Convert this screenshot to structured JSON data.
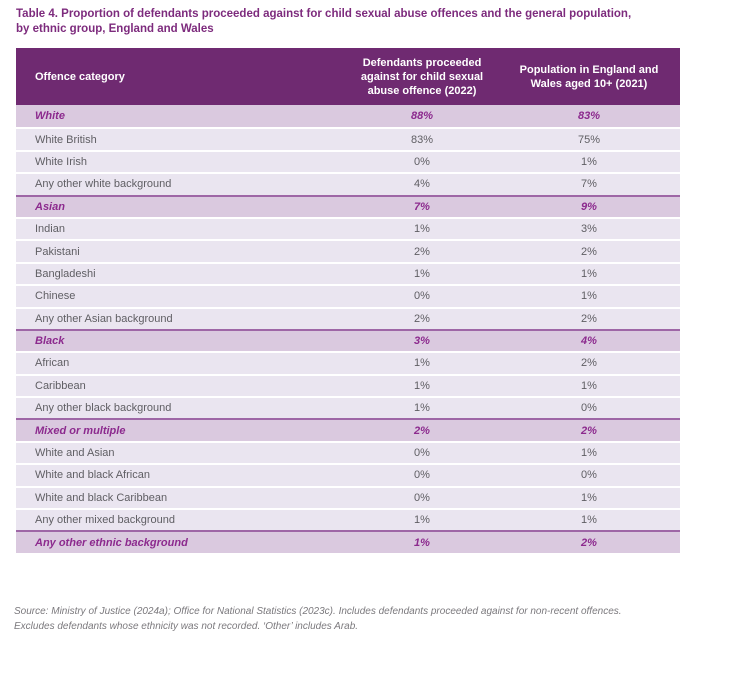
{
  "title": {
    "line1": "Table 4. Proportion of defendants proceeded against for child sexual abuse offences and the general population,",
    "line2": "by ethnic group, England and Wales"
  },
  "table": {
    "headers": [
      "Offence category",
      "Defendants proceeded against for child sexual abuse offence (2022)",
      "Population in England and Wales aged 10+ (2021)"
    ],
    "rows": [
      {
        "label": "White",
        "defendants": "88%",
        "population": "83%",
        "group": true
      },
      {
        "label": "White British",
        "defendants": "83%",
        "population": "75%",
        "group": false
      },
      {
        "label": "White Irish",
        "defendants": "0%",
        "population": "1%",
        "group": false
      },
      {
        "label": "Any other white background",
        "defendants": "4%",
        "population": "7%",
        "group": false
      },
      {
        "label": "Asian",
        "defendants": "7%",
        "population": "9%",
        "group": true
      },
      {
        "label": "Indian",
        "defendants": "1%",
        "population": "3%",
        "group": false
      },
      {
        "label": "Pakistani",
        "defendants": "2%",
        "population": "2%",
        "group": false
      },
      {
        "label": "Bangladeshi",
        "defendants": "1%",
        "population": "1%",
        "group": false
      },
      {
        "label": "Chinese",
        "defendants": "0%",
        "population": "1%",
        "group": false
      },
      {
        "label": "Any other Asian background",
        "defendants": "2%",
        "population": "2%",
        "group": false
      },
      {
        "label": "Black",
        "defendants": "3%",
        "population": "4%",
        "group": true
      },
      {
        "label": "African",
        "defendants": "1%",
        "population": "2%",
        "group": false
      },
      {
        "label": "Caribbean",
        "defendants": "1%",
        "population": "1%",
        "group": false
      },
      {
        "label": "Any other black background",
        "defendants": "1%",
        "population": "0%",
        "group": false
      },
      {
        "label": "Mixed or multiple",
        "defendants": "2%",
        "population": "2%",
        "group": true
      },
      {
        "label": "White and Asian",
        "defendants": "0%",
        "population": "1%",
        "group": false
      },
      {
        "label": "White and black African",
        "defendants": "0%",
        "population": "0%",
        "group": false
      },
      {
        "label": "White and black Caribbean",
        "defendants": "0%",
        "population": "1%",
        "group": false
      },
      {
        "label": "Any other mixed background",
        "defendants": "1%",
        "population": "1%",
        "group": false
      },
      {
        "label": "Any other ethnic background",
        "defendants": "1%",
        "population": "2%",
        "group": true
      }
    ]
  },
  "source": {
    "line1": "Source: Ministry of Justice (2024a); Office for National Statistics (2023c). Includes defendants proceeded against for non-recent offences.",
    "line2": "Excludes defendants whose ethnicity was not recorded. ‘Other’ includes Arab."
  },
  "colors": {
    "title_text": "#7d2b7d",
    "header_bg": "#6f2a71",
    "header_text": "#ffffff",
    "group_row_bg": "#dac9df",
    "group_row_text": "#8c2a8e",
    "body_row_bg": "#eae5f0",
    "body_row_text": "#5f5e63",
    "section_divider": "#9e66a6",
    "source_text": "#7b797d"
  }
}
